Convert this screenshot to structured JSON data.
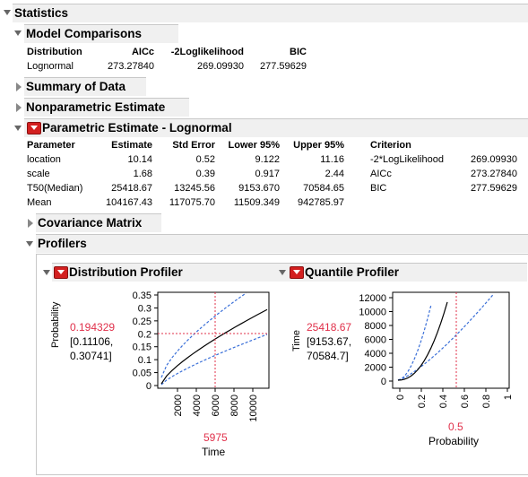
{
  "statistics": {
    "title": "Statistics"
  },
  "model_comparisons": {
    "title": "Model Comparisons",
    "headers": [
      "Distribution",
      "AICc",
      "-2Loglikelihood",
      "BIC"
    ],
    "row": [
      "Lognormal",
      "273.27840",
      "269.09930",
      "277.59629"
    ]
  },
  "summary_of_data": {
    "title": "Summary of Data"
  },
  "nonparametric": {
    "title": "Nonparametric Estimate"
  },
  "parametric": {
    "title": "Parametric Estimate - Lognormal",
    "headers": [
      "Parameter",
      "Estimate",
      "Std Error",
      "Lower 95%",
      "Upper 95%"
    ],
    "rows": [
      [
        "location",
        "10.14",
        "0.52",
        "9.122",
        "11.16"
      ],
      [
        "scale",
        "1.68",
        "0.39",
        "0.917",
        "2.44"
      ],
      [
        "T50(Median)",
        "25418.67",
        "13245.56",
        "9153.670",
        "70584.65"
      ],
      [
        "Mean",
        "104167.43",
        "117075.70",
        "11509.349",
        "942785.97"
      ]
    ],
    "criterion_header": "Criterion",
    "criteria": [
      [
        "-2*LogLikelihood",
        "269.09930"
      ],
      [
        "AICc",
        "273.27840"
      ],
      [
        "BIC",
        "277.59629"
      ]
    ]
  },
  "covariance": {
    "title": "Covariance Matrix"
  },
  "profilers": {
    "title": "Profilers"
  },
  "distribution_profiler": {
    "title": "Distribution Profiler",
    "ylabel": "Probability",
    "xlabel": "Time",
    "value": "0.194329",
    "ci_line1": "[0.11106,",
    "ci_line2": "0.30741]",
    "x_value": "5975",
    "y_ticks": [
      "0.35",
      "0.3",
      "0.25",
      "0.2",
      "0.15",
      "0.1",
      "0.05",
      "0"
    ],
    "x_ticks": [
      "2000",
      "4000",
      "6000",
      "8000",
      "10000"
    ]
  },
  "quantile_profiler": {
    "title": "Quantile Profiler",
    "ylabel": "Time",
    "xlabel": "Probability",
    "value": "25418.67",
    "ci_line1": "[9153.67,",
    "ci_line2": "70584.7]",
    "x_value": "0.5",
    "y_ticks": [
      "12000",
      "10000",
      "8000",
      "6000",
      "4000",
      "2000",
      "0"
    ],
    "x_ticks": [
      "0",
      "0.2",
      "0.4",
      "0.6",
      "0.8",
      "1"
    ]
  },
  "colors": {
    "accent_red": "#e0304a",
    "dashed_blue": "#3a6fd8",
    "header_bg": "#f0f0f0"
  }
}
